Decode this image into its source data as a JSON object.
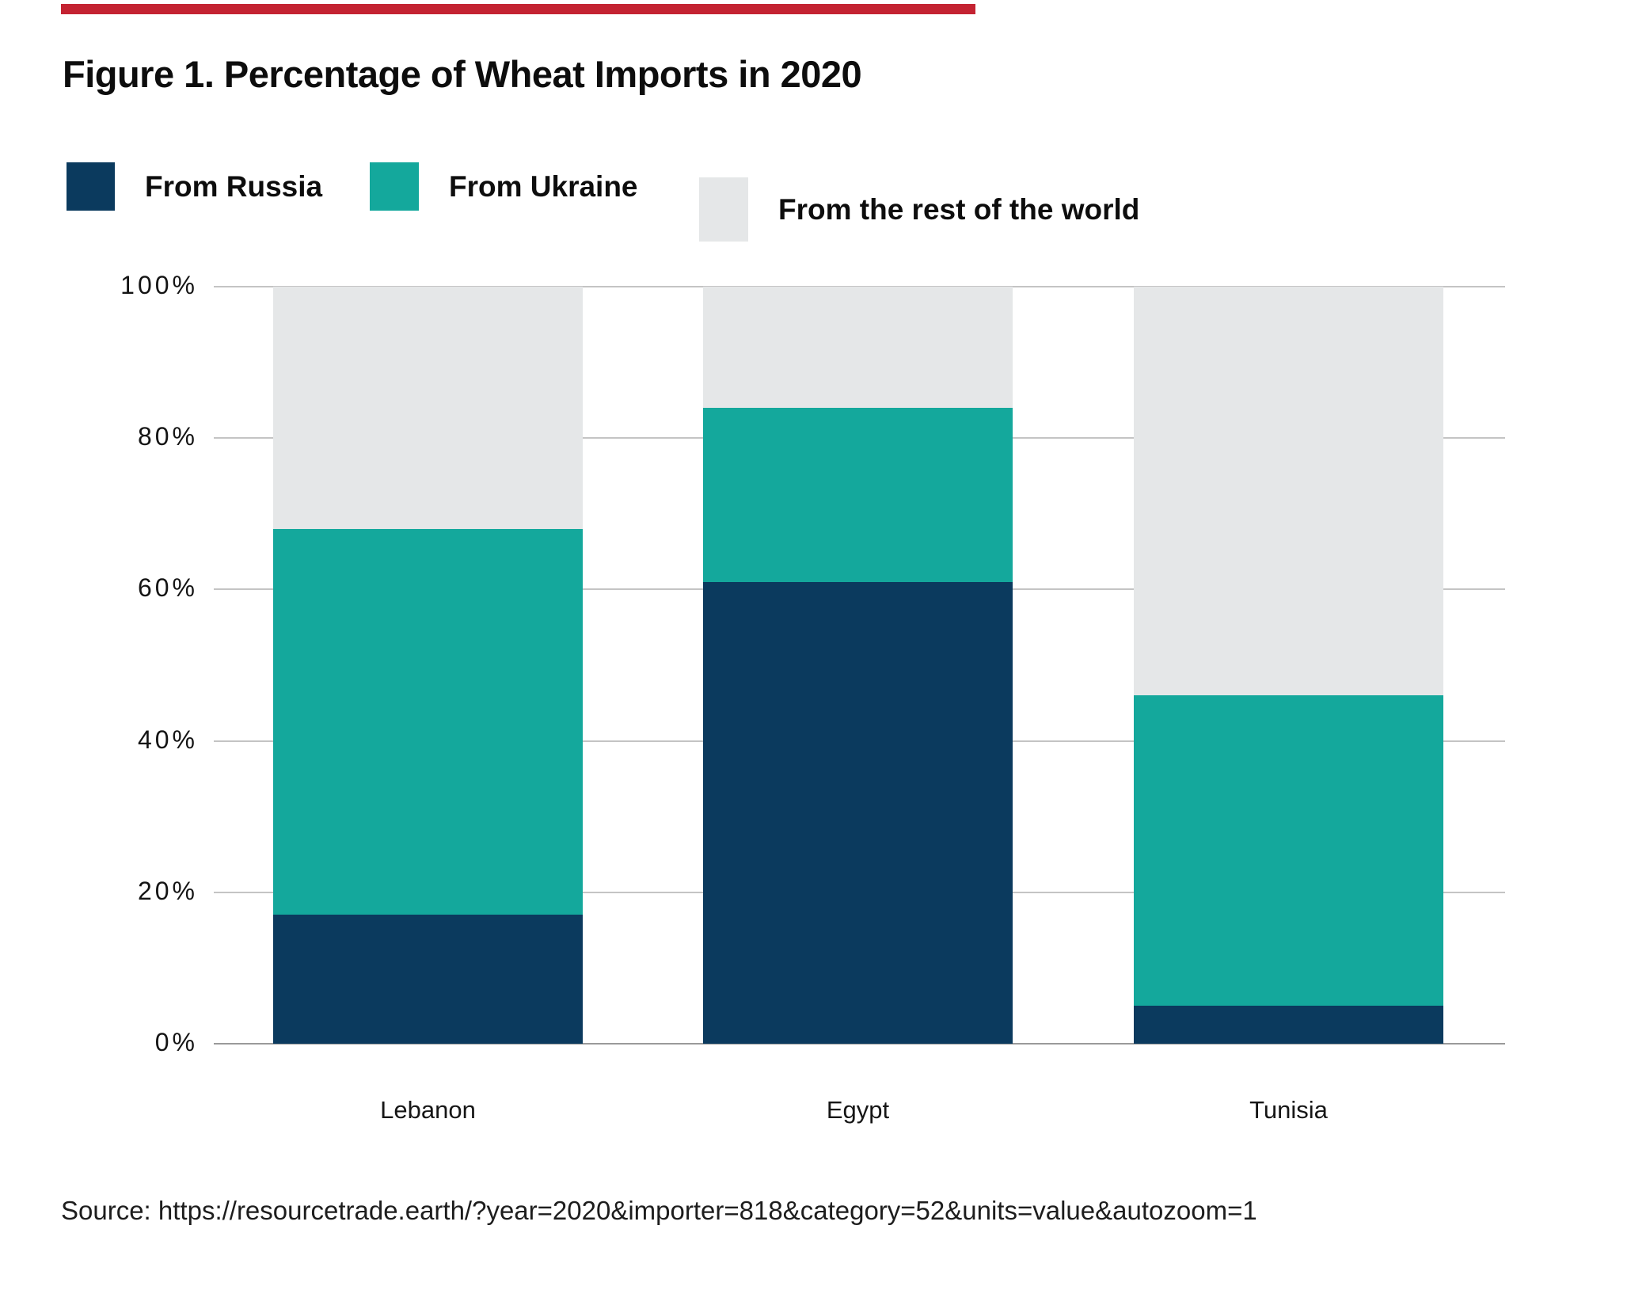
{
  "figure": {
    "title": "Figure 1. Percentage of Wheat Imports in 2020",
    "accent_rule_color": "#c42332",
    "source": "Source: https://resourcetrade.earth/?year=2020&importer=818&category=52&units=value&autozoom=1"
  },
  "legend": [
    {
      "label": "From Russia",
      "color": "#0b3a5e"
    },
    {
      "label": "From Ukraine",
      "color": "#14a89c"
    },
    {
      "label": "From the rest of the world",
      "color": "#e5e7e8"
    }
  ],
  "chart_data": {
    "type": "bar",
    "stacked": true,
    "title": "Figure 1. Percentage of Wheat Imports in 2020",
    "categories": [
      "Lebanon",
      "Egypt",
      "Tunisia"
    ],
    "series": [
      {
        "name": "From Russia",
        "color": "#0b3a5e",
        "values": [
          17,
          61,
          5
        ]
      },
      {
        "name": "From Ukraine",
        "color": "#14a89c",
        "values": [
          51,
          23,
          41
        ]
      },
      {
        "name": "From the rest of the world",
        "color": "#e5e7e8",
        "values": [
          32,
          16,
          54
        ]
      }
    ],
    "y_ticks": [
      0,
      20,
      40,
      60,
      80,
      100
    ],
    "y_tick_labels": [
      "0%",
      "20%",
      "40%",
      "60%",
      "80%",
      "100%"
    ],
    "ylim": [
      0,
      100
    ],
    "xlabel": "",
    "ylabel": "",
    "grid": true,
    "legend_position": "top"
  }
}
